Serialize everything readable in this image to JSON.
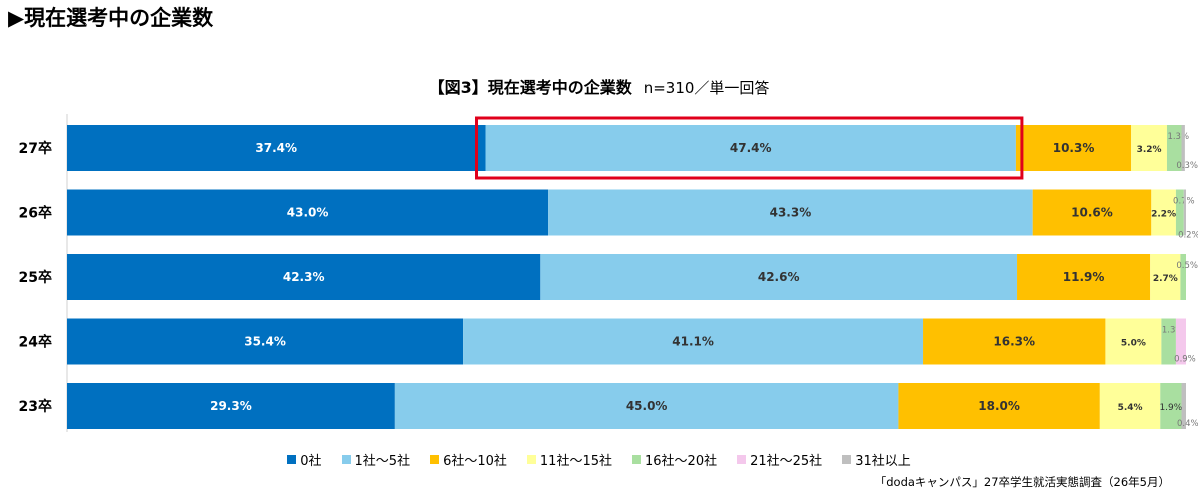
{
  "heading": "▶現在選考中の企業数",
  "chart_data": {
    "type": "bar",
    "orientation": "horizontal",
    "stacked": true,
    "percent": true,
    "title": "【図3】現在選考中の企業数",
    "note": "n=310／単一回答",
    "categories": [
      "27卒",
      "26卒",
      "25卒",
      "24卒",
      "23卒"
    ],
    "series": [
      {
        "name": "0社",
        "color": "#0070C0",
        "values": [
          37.4,
          43.0,
          42.3,
          35.4,
          29.3
        ],
        "labels": [
          "37.4%",
          "43.0%",
          "42.3%",
          "35.4%",
          "29.3%"
        ]
      },
      {
        "name": "1社～5社",
        "color": "#87CCEC",
        "values": [
          47.4,
          43.3,
          42.6,
          41.1,
          45.0
        ],
        "labels": [
          "47.4%",
          "43.3%",
          "42.6%",
          "41.1%",
          "45.0%"
        ]
      },
      {
        "name": "6社～10社",
        "color": "#FFC000",
        "values": [
          10.3,
          10.6,
          11.9,
          16.3,
          18.0
        ],
        "labels": [
          "10.3%",
          "10.6%",
          "11.9%",
          "16.3%",
          "18.0%"
        ]
      },
      {
        "name": "11社～15社",
        "color": "#FFFF99",
        "values": [
          3.2,
          2.2,
          2.7,
          5.0,
          5.4
        ],
        "labels": [
          "3.2%",
          "2.2%",
          "2.7%",
          "5.0%",
          "5.4%"
        ]
      },
      {
        "name": "16社～20社",
        "color": "#A9DFA0",
        "values": [
          1.3,
          0.7,
          0.5,
          1.3,
          1.9
        ],
        "labels": [
          "1.3%",
          "0.7%",
          "0.5%",
          "1.3%",
          "1.9%"
        ]
      },
      {
        "name": "21社～25社",
        "color": "#F4C8EC",
        "values": [
          0.0,
          0.0,
          0.0,
          0.9,
          0.0
        ],
        "labels": [
          "",
          "",
          "",
          "0.9%",
          ""
        ]
      },
      {
        "name": "31社以上",
        "color": "#BFBFBF",
        "values": [
          0.3,
          0.2,
          0.0,
          0.0,
          0.4
        ],
        "labels": [
          "0.3%",
          "0.2%",
          "",
          "",
          "0.4%"
        ]
      }
    ],
    "highlight": {
      "category": "27卒",
      "series": "1社～5社",
      "color": "#E0001B"
    },
    "xlim": [
      0,
      100
    ]
  },
  "source": "「dodaキャンパス」27卒学生就活実態調査（26年5月）"
}
